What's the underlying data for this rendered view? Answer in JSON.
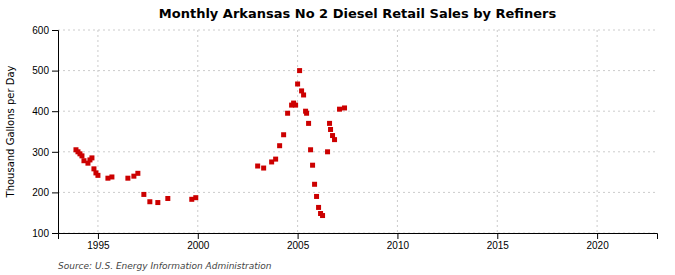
{
  "chart_data": {
    "type": "scatter",
    "title": "Monthly Arkansas No 2 Diesel Retail Sales by Refiners",
    "ylabel": "Thousand Gallons per Day",
    "annotations": [
      "Source: U.S. Energy Information Administration"
    ],
    "color": "#cc0000",
    "marker": "square",
    "grid": true,
    "xlim": [
      1993.0,
      2023.0
    ],
    "ylim": [
      100,
      600
    ],
    "xticks": [
      1995,
      2000,
      2005,
      2010,
      2015,
      2020
    ],
    "yticks": [
      100,
      200,
      300,
      400,
      500,
      600
    ],
    "x": [
      1993.9,
      1994.0,
      1994.1,
      1994.2,
      1994.3,
      1994.5,
      1994.6,
      1994.7,
      1994.8,
      1994.9,
      1995.0,
      1995.5,
      1995.7,
      1996.5,
      1996.8,
      1997.0,
      1997.3,
      1997.6,
      1998.0,
      1998.5,
      1999.7,
      1999.9,
      2003.0,
      2003.3,
      2003.7,
      2003.9,
      2004.1,
      2004.3,
      2004.5,
      2004.7,
      2004.8,
      2004.9,
      2005.0,
      2005.1,
      2005.2,
      2005.3,
      2005.4,
      2005.45,
      2005.55,
      2005.65,
      2005.75,
      2005.85,
      2005.95,
      2006.05,
      2006.15,
      2006.25,
      2006.5,
      2006.6,
      2006.65,
      2006.75,
      2006.85,
      2007.1,
      2007.35
    ],
    "values": [
      305,
      300,
      295,
      290,
      278,
      272,
      280,
      285,
      258,
      248,
      242,
      235,
      238,
      235,
      240,
      247,
      195,
      177,
      175,
      185,
      183,
      187,
      265,
      260,
      275,
      282,
      315,
      342,
      395,
      415,
      420,
      415,
      467,
      500,
      450,
      440,
      400,
      395,
      370,
      305,
      267,
      220,
      190,
      163,
      148,
      143,
      300,
      370,
      355,
      340,
      330,
      405,
      408
    ]
  }
}
